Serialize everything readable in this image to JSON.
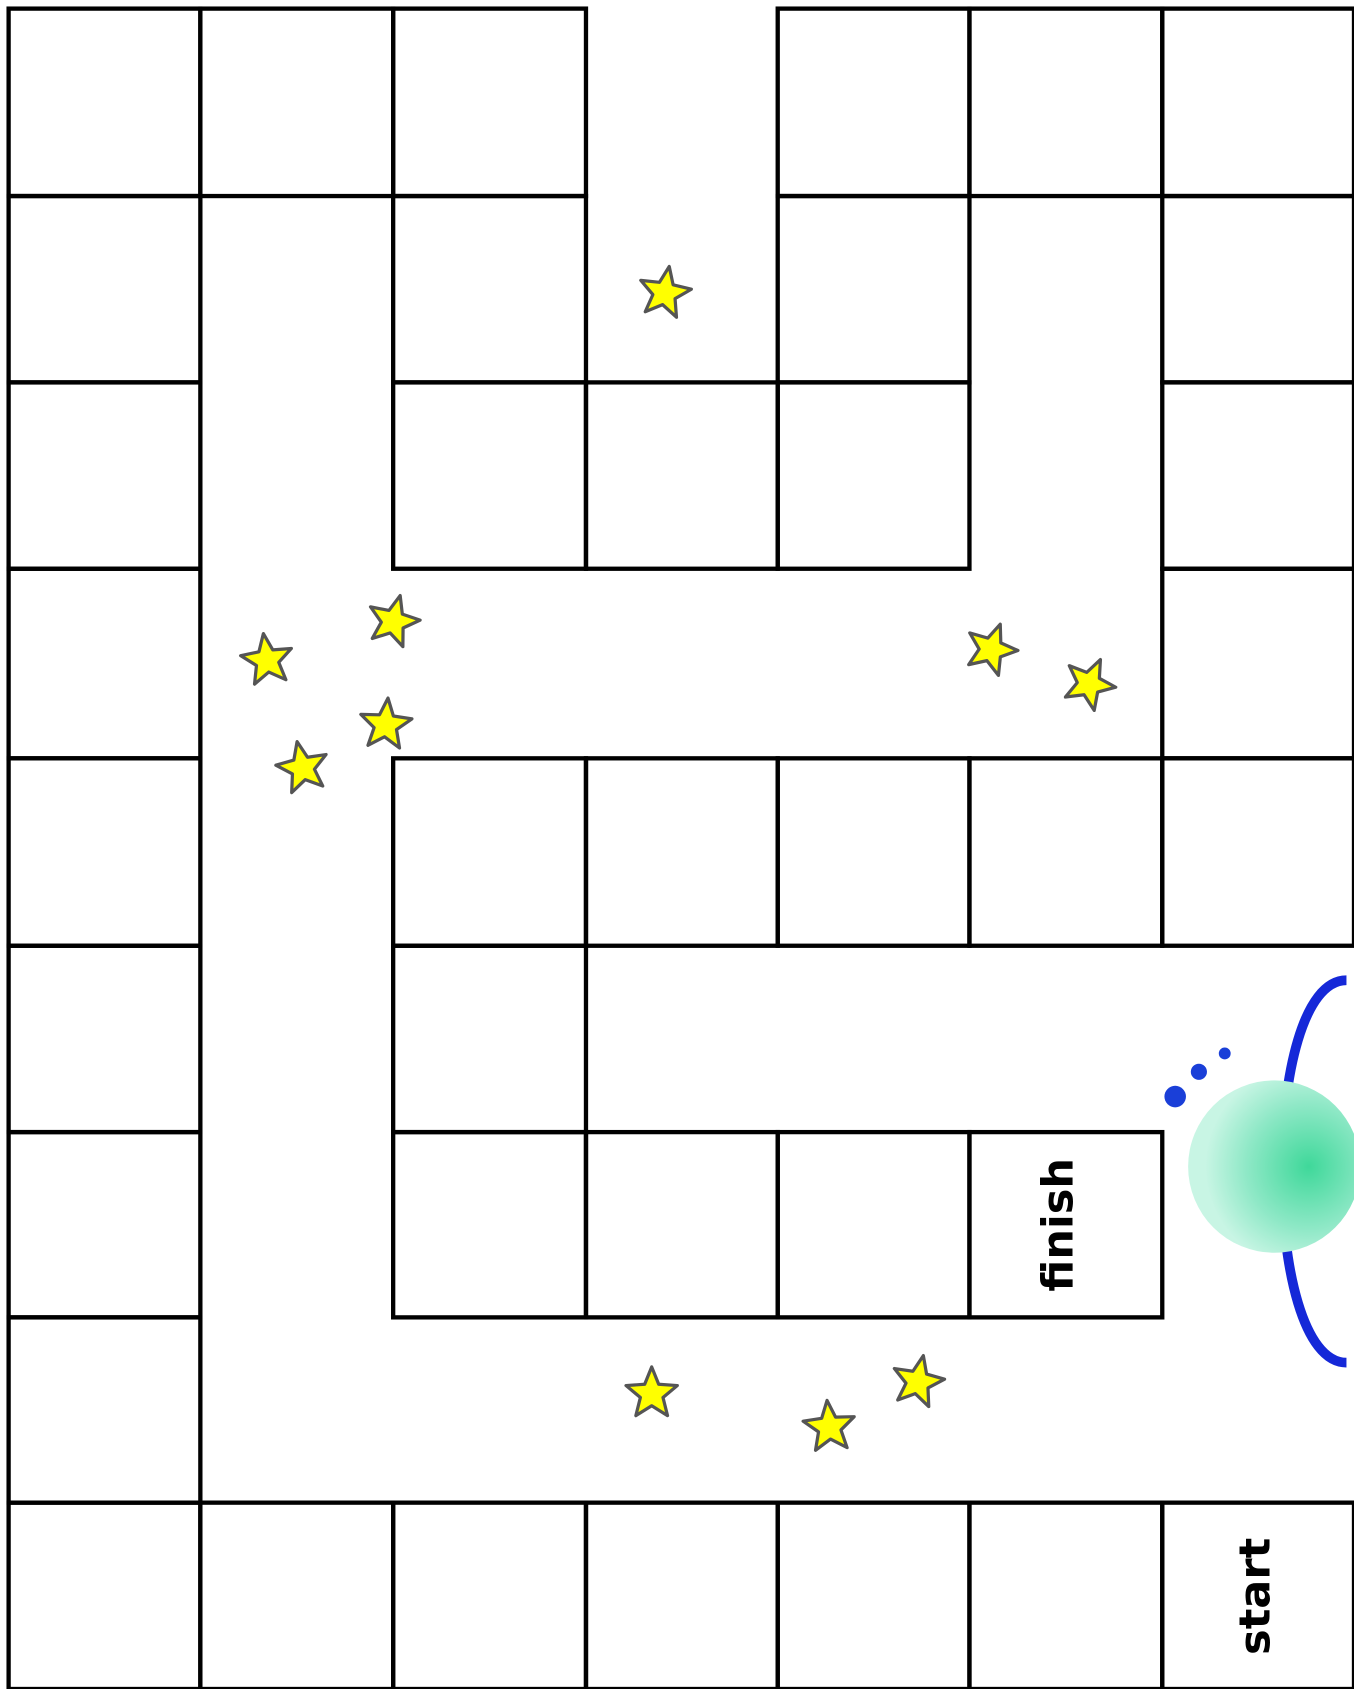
{
  "board": {
    "finish_label": "finish",
    "start_label": "start"
  }
}
